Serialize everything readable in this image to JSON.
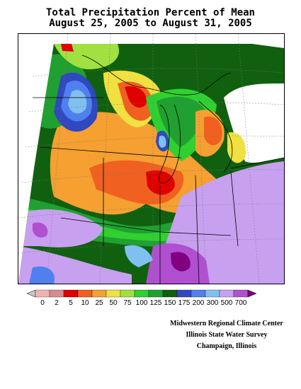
{
  "title": {
    "line1": "Total Precipitation Percent of Mean",
    "line2": "August 25, 2005 to August 31, 2005"
  },
  "legend": {
    "labels": [
      "0",
      "2",
      "5",
      "10",
      "25",
      "50",
      "75",
      "100",
      "125",
      "150",
      "175",
      "200",
      "300",
      "500",
      "700"
    ],
    "colors": [
      "#f0b3b3",
      "#d98c8c",
      "#e00000",
      "#f06020",
      "#f5a030",
      "#f0e040",
      "#a0e040",
      "#30d030",
      "#20a030",
      "#106010",
      "#3048c0",
      "#5080f0",
      "#80c0f0",
      "#c8a0f0",
      "#b050d0",
      "#800080"
    ],
    "low_arrow_color": "#c8c8c8",
    "high_arrow_color": "#800080"
  },
  "credits": {
    "line1": "Midwestern Regional Climate Center",
    "line2": "Illinois State Water Survey",
    "line3": "Champaign, Illinois"
  },
  "map": {
    "projection_note": "",
    "colors": {
      "dark_green": "#106010",
      "green": "#20a030",
      "light_green": "#30d030",
      "yellow_green": "#a0e040",
      "yellow": "#f0e040",
      "orange": "#f5a030",
      "red_orange": "#f06020",
      "red": "#e00000",
      "blue": "#3048c0",
      "med_blue": "#5080f0",
      "light_blue": "#80c0f0",
      "lavender": "#c8a0f0",
      "purple": "#b050d0",
      "dark_purple": "#800080"
    }
  }
}
